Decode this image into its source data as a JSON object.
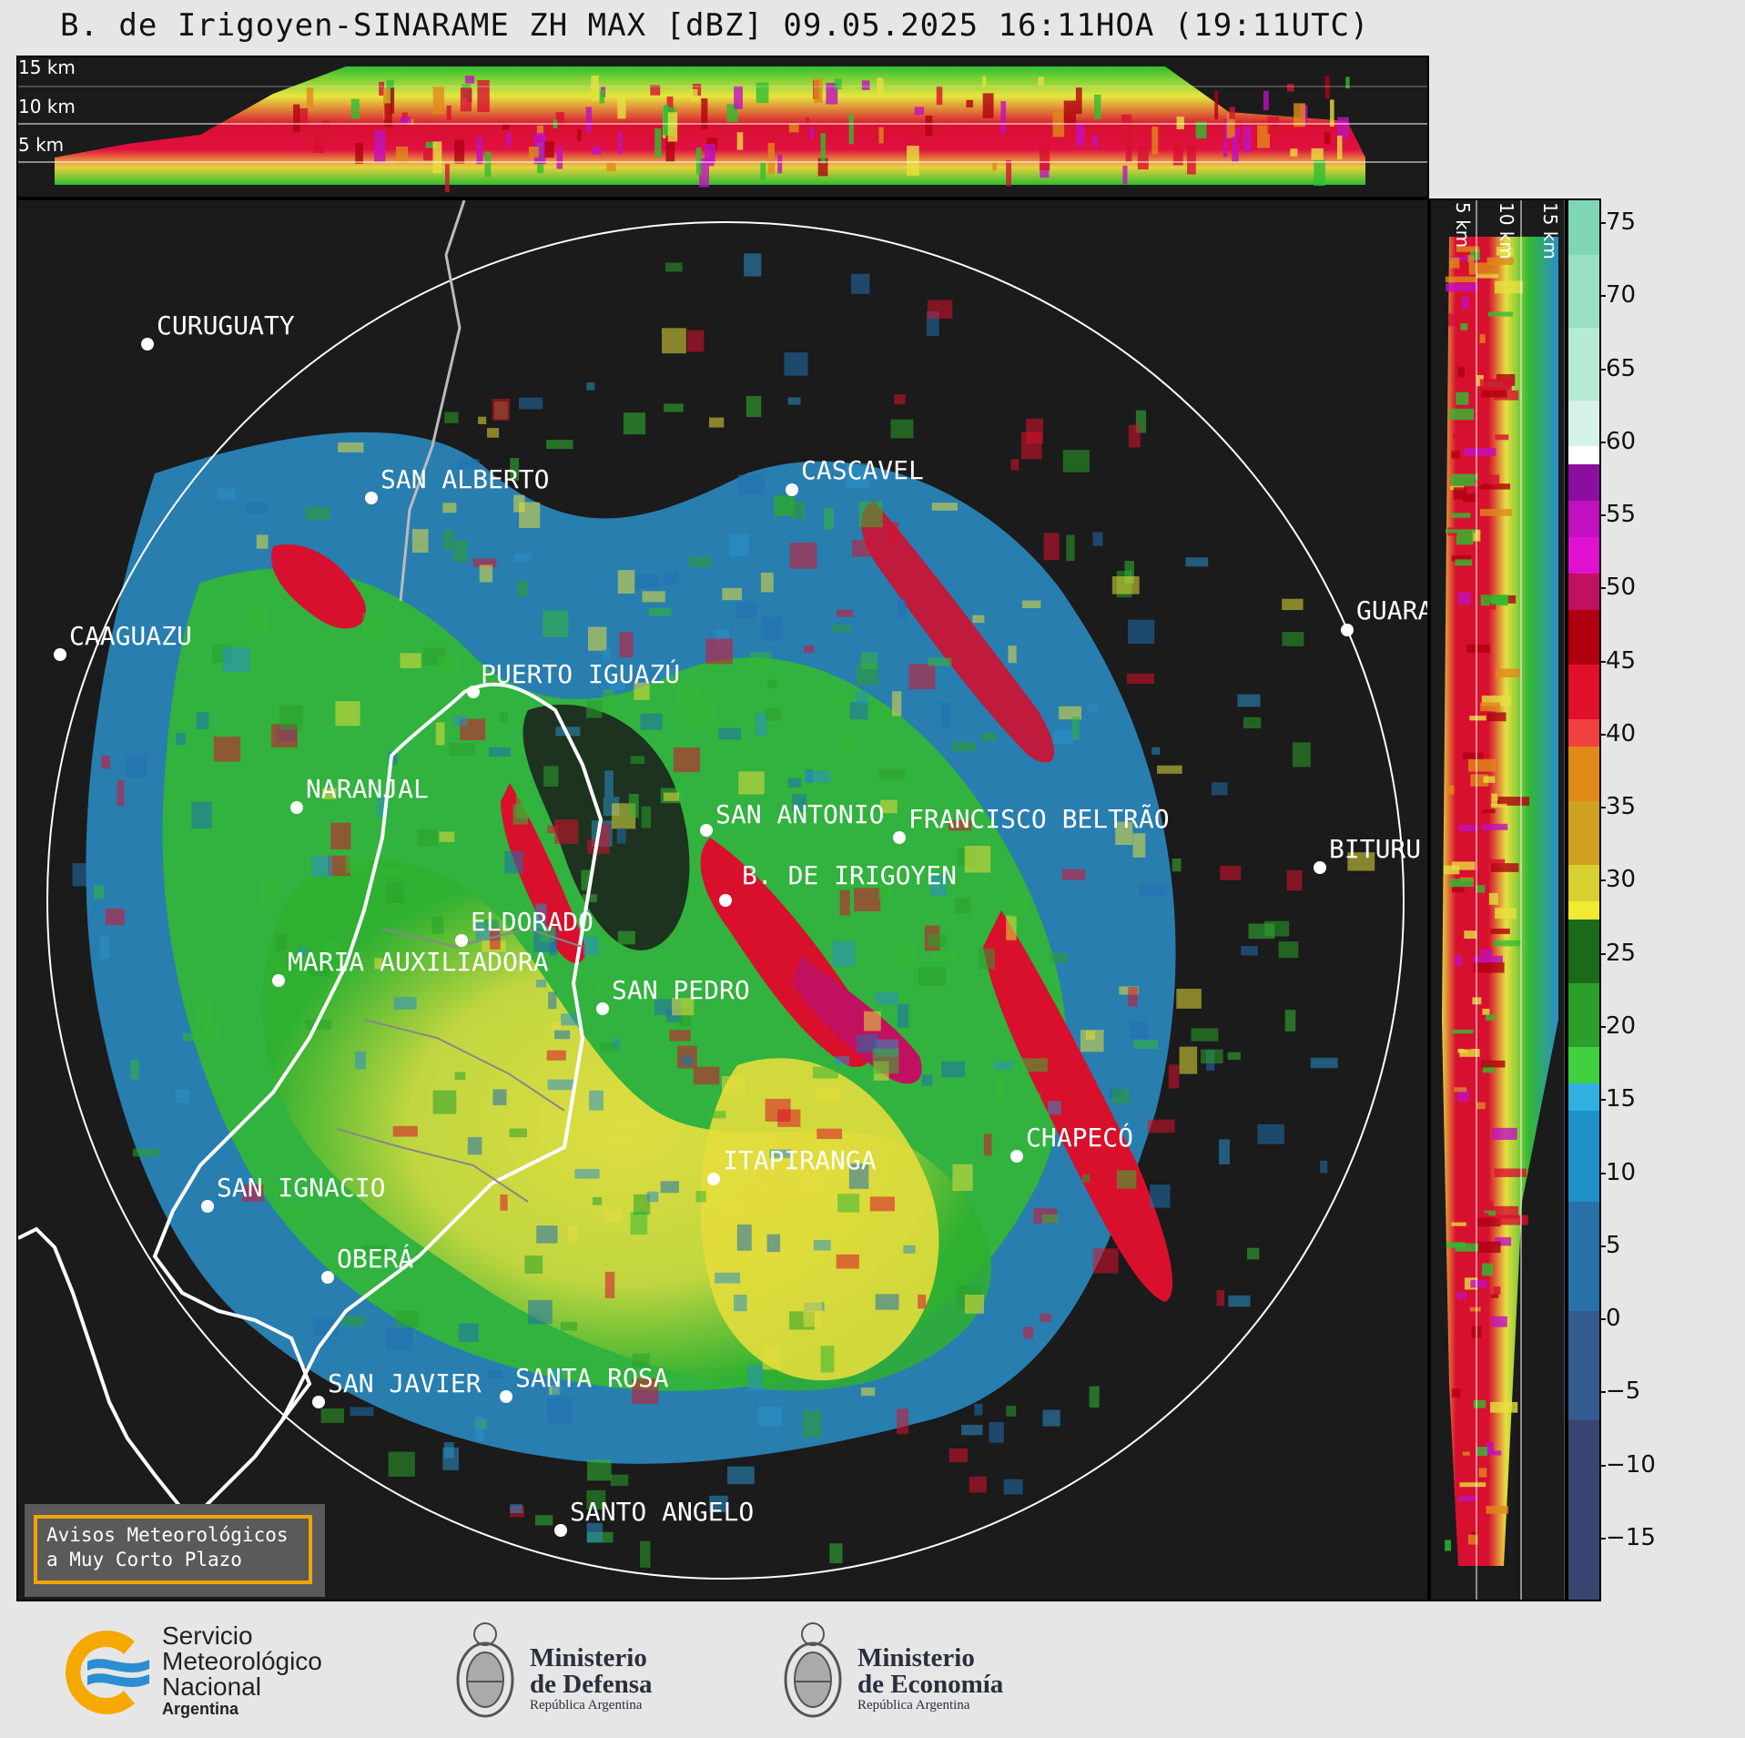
{
  "title": "B. de Irigoyen-SINARAME ZH MAX [dBZ] 09.05.2025 16:11HOA (19:11UTC)",
  "height_labels": [
    "15 km",
    "10 km",
    "5 km"
  ],
  "cities": [
    {
      "name": "CURUGUATY"
    },
    {
      "name": "SAN ALBERTO"
    },
    {
      "name": "CASCAVEL"
    },
    {
      "name": "CAAGUAZU"
    },
    {
      "name": "GUARA"
    },
    {
      "name": "PUERTO IGUAZÚ"
    },
    {
      "name": "NARANJAL"
    },
    {
      "name": "SAN ANTONIO"
    },
    {
      "name": "FRANCISCO BELTRÃO"
    },
    {
      "name": "BITURU"
    },
    {
      "name": "B. DE IRIGOYEN"
    },
    {
      "name": "ELDORADO"
    },
    {
      "name": "MARIA AUXILIADORA"
    },
    {
      "name": "SAN PEDRO"
    },
    {
      "name": "CHAPECÓ"
    },
    {
      "name": "ITAPIRANGA"
    },
    {
      "name": "SAN IGNACIO"
    },
    {
      "name": "OBERÁ"
    },
    {
      "name": "SAN JAVIER"
    },
    {
      "name": "SANTA ROSA"
    },
    {
      "name": "SANTO ANGELO"
    }
  ],
  "colorbar": {
    "unit": "dBZ",
    "ticks": [
      "75",
      "70",
      "65",
      "60",
      "55",
      "50",
      "45",
      "40",
      "35",
      "30",
      "25",
      "20",
      "15",
      "10",
      "5",
      "0",
      "−5",
      "−10",
      "−15"
    ]
  },
  "notice": {
    "line1": "Avisos Meteorológicos",
    "line2": "a Muy Corto Plazo"
  },
  "logos": {
    "smn": {
      "line1": "Servicio",
      "line2": "Meteorológico",
      "line3": "Nacional",
      "line4": "Argentina"
    },
    "defensa": {
      "line1": "Ministerio",
      "line2": "de Defensa",
      "line3": "República Argentina"
    },
    "economia": {
      "line1": "Ministerio",
      "line2": "de Economía",
      "line3": "República Argentina"
    }
  },
  "colors": {
    "background": "#1b1b1b",
    "accent": "#f0a500",
    "smn_blue": "#2a8fd0",
    "smn_orange": "#f5a800"
  }
}
